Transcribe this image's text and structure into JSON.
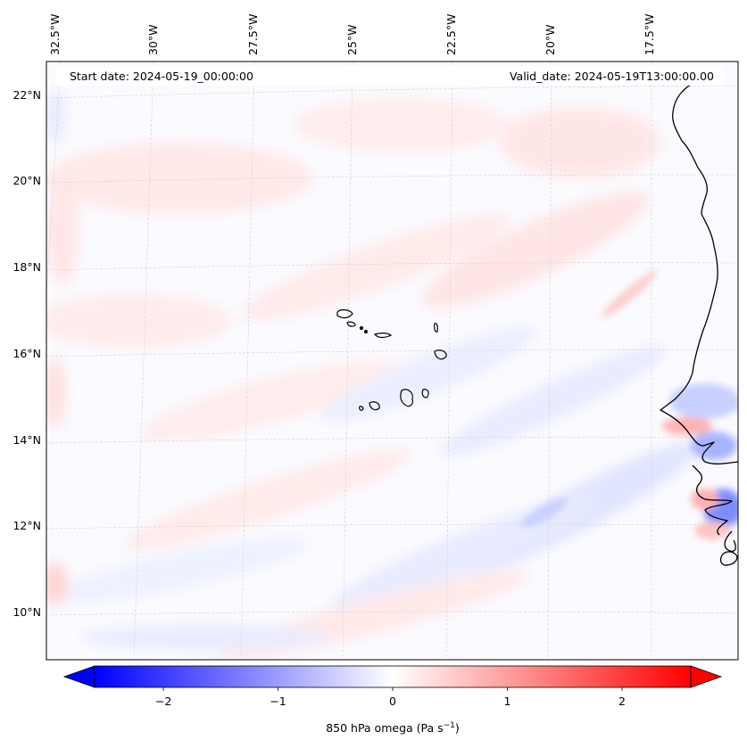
{
  "header": {
    "start_date": "Start date: 2024-05-19_00:00:00",
    "valid_date": "Valid_date: 2024-05-19T13:00:00.00"
  },
  "map": {
    "lon_labels": [
      "32.5°W",
      "30°W",
      "27.5°W",
      "25°W",
      "22.5°W",
      "20°W",
      "17.5°W"
    ],
    "lat_labels": [
      "22°N",
      "20°N",
      "18°N",
      "16°N",
      "14°N",
      "12°N",
      "10°N"
    ],
    "gridlines": "dashed",
    "coastlines": true
  },
  "colorbar": {
    "label": "850 hPa omega (Pa s",
    "label_sup": "−1",
    "label_close": ")",
    "ticks": [
      "−2",
      "−1",
      "0",
      "1",
      "2"
    ],
    "tick_values": [
      -2,
      -1,
      0,
      1,
      2
    ],
    "range": [
      -2.6,
      2.6
    ],
    "extend": "both",
    "colormap": "bwr",
    "colors": {
      "min": "#0000ff",
      "mid": "#ffffff",
      "max": "#ff0000"
    }
  }
}
